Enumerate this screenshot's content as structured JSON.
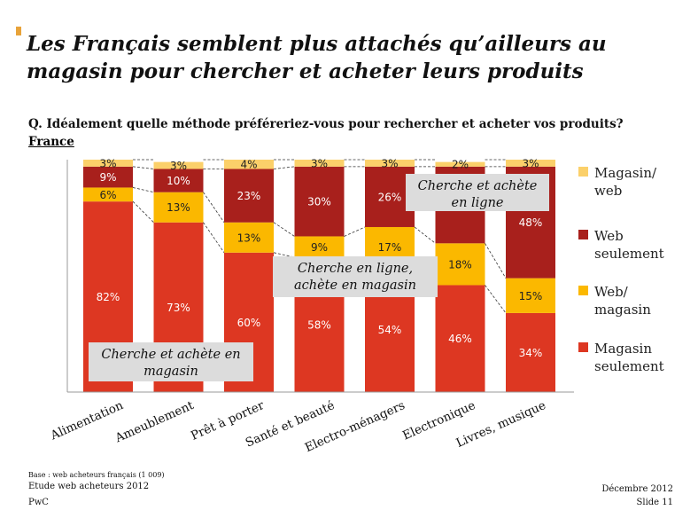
{
  "title": "Les Français semblent plus attachés qu’ailleurs au magasin pour chercher et acheter leurs produits",
  "question": "Q. Idéalement quelle méthode préféreriez-vous pour rechercher et acheter vos produits?",
  "country": "France",
  "footer": {
    "base": "Base : web acheteurs français (1 009)",
    "study": "Etude web acheteurs 2012",
    "company": "PwC",
    "date": "Décembre 2012",
    "slide": "Slide 11"
  },
  "colors": {
    "magasin_seulement": "#dd3722",
    "web_magasin": "#fbb800",
    "web_seulement": "#a8201c",
    "magasin_web": "#fbd06a",
    "callout_bg": "#dcdcdc",
    "axis": "#999999"
  },
  "chart_data": {
    "type": "bar",
    "stacked": true,
    "ylim": [
      0,
      100
    ],
    "categories": [
      "Alimentation",
      "Ameublement",
      "Prêt à porter",
      "Santé et beauté",
      "Electro-ménagers",
      "Electronique",
      "Livres, musique"
    ],
    "series": [
      {
        "name": "Magasin seulement",
        "values": [
          82,
          73,
          60,
          58,
          54,
          46,
          34
        ]
      },
      {
        "name": "Web/ magasin",
        "values": [
          6,
          13,
          13,
          9,
          17,
          18,
          15
        ]
      },
      {
        "name": "Web seulement",
        "values": [
          9,
          10,
          23,
          30,
          26,
          33,
          48
        ]
      },
      {
        "name": "Magasin/ web",
        "values": [
          3,
          3,
          4,
          3,
          3,
          2,
          3
        ]
      }
    ],
    "legend": [
      {
        "line1": "Magasin/",
        "line2": "web",
        "series": 3
      },
      {
        "line1": "Web",
        "line2": "seulement",
        "series": 2
      },
      {
        "line1": "Web/",
        "line2": "magasin",
        "series": 1
      },
      {
        "line1": "Magasin",
        "line2": "seulement",
        "series": 0
      }
    ],
    "legend_position": "right",
    "annotations": [
      {
        "line1": "Cherche et achète en",
        "line2": "magasin"
      },
      {
        "line1": "Cherche en ligne,",
        "line2": "achète en magasin"
      },
      {
        "line1": "Cherche et achète",
        "line2": "en ligne"
      }
    ]
  }
}
